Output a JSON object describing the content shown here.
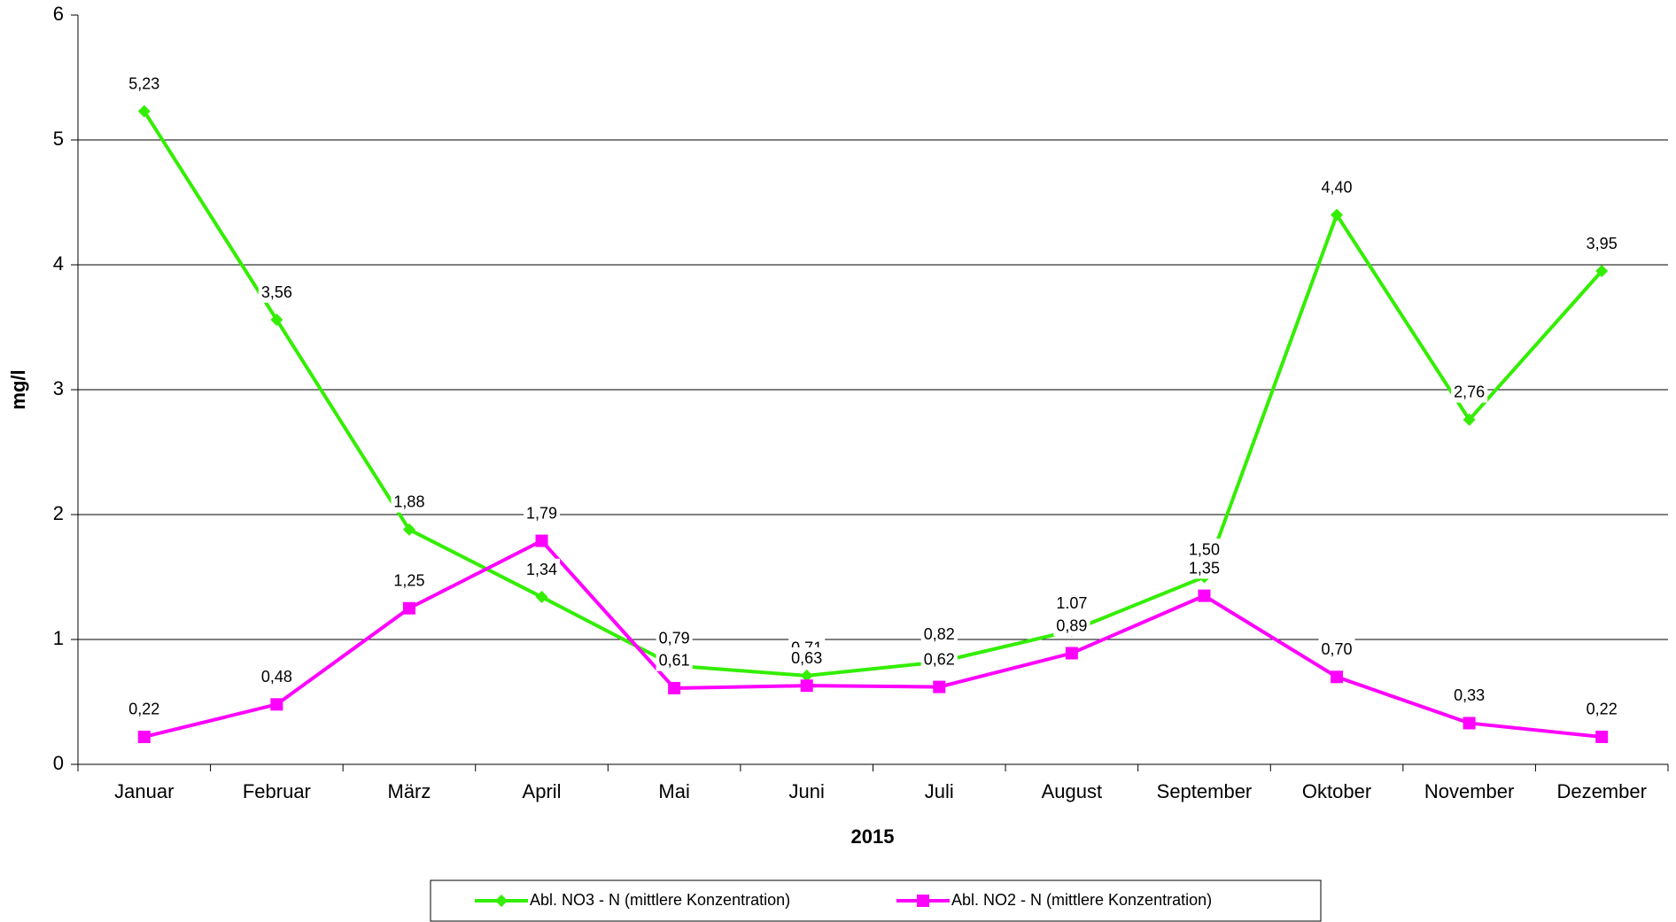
{
  "chart_data": {
    "type": "line",
    "x_label": "2015",
    "y_label": "mg/l",
    "categories": [
      "Januar",
      "Februar",
      "März",
      "April",
      "Mai",
      "Juni",
      "Juli",
      "August",
      "September",
      "Oktober",
      "November",
      "Dezember"
    ],
    "series": [
      {
        "name": "Abl. NO3 - N (mittlere Konzentration)",
        "color": "#33ee00",
        "marker": "diamond",
        "values": [
          5.23,
          3.56,
          1.88,
          1.34,
          0.79,
          0.71,
          0.82,
          1.07,
          1.5,
          4.4,
          2.76,
          3.95
        ],
        "value_labels": [
          "5,23",
          "3,56",
          "1,88",
          "1,34",
          "0,79",
          "0,71",
          "0,82",
          "1.07",
          "1,50",
          "4,40",
          "2,76",
          "3,95"
        ]
      },
      {
        "name": "Abl. NO2 - N (mittlere Konzentration)",
        "color": "#ff00ff",
        "marker": "square",
        "values": [
          0.22,
          0.48,
          1.25,
          1.79,
          0.61,
          0.63,
          0.62,
          0.89,
          1.35,
          0.7,
          0.33,
          0.22
        ],
        "value_labels": [
          "0,22",
          "0,48",
          "1,25",
          "1,79",
          "0,61",
          "0,63",
          "0,62",
          "0,89",
          "1,35",
          "0,70",
          "0,33",
          "0,22"
        ]
      }
    ],
    "ylim": [
      0,
      6
    ],
    "yticks": [
      0,
      1,
      2,
      3,
      4,
      5,
      6
    ],
    "grid": true,
    "legend": "bottom"
  }
}
